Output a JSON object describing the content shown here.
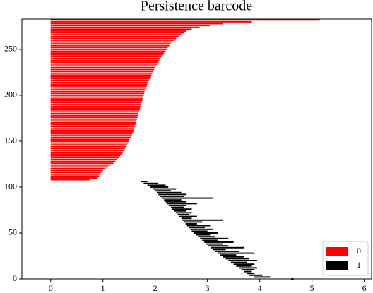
{
  "chart_data": {
    "type": "barcode",
    "title": "Persistence barcode",
    "xlim": [
      -0.55,
      6.14
    ],
    "xticks": [
      0,
      1,
      2,
      3,
      4,
      5,
      6
    ],
    "ylim": [
      0,
      283
    ],
    "yticks": [
      0,
      50,
      100,
      150,
      200,
      250
    ],
    "legend": "lower right",
    "series": [
      {
        "name": "0",
        "color": "#ff0000",
        "y": [
          282,
          280,
          278,
          276,
          274,
          272,
          270,
          268,
          266,
          264,
          262,
          260,
          258,
          256,
          254,
          252,
          250,
          248,
          246,
          244,
          242,
          240,
          238,
          236,
          234,
          232,
          230,
          228,
          226,
          224,
          222,
          220,
          218,
          216,
          214,
          212,
          210,
          208,
          206,
          204,
          202,
          200,
          198,
          196,
          194,
          192,
          190,
          188,
          186,
          184,
          182,
          180,
          178,
          176,
          174,
          172,
          170,
          168,
          166,
          164,
          162,
          160,
          158,
          156,
          154,
          152,
          150,
          148,
          146,
          144,
          142,
          140,
          138,
          136,
          134,
          132,
          130,
          128,
          126,
          124,
          122,
          120,
          118,
          116,
          114,
          112,
          110,
          108
        ],
        "births": [
          0,
          0,
          0,
          0,
          0,
          0,
          0,
          0,
          0,
          0,
          0,
          0,
          0,
          0,
          0,
          0,
          0,
          0,
          0,
          0,
          0,
          0,
          0,
          0,
          0,
          0,
          0,
          0,
          0,
          0,
          0,
          0,
          0,
          0,
          0,
          0,
          0,
          0,
          0,
          0,
          0,
          0,
          0,
          0,
          0,
          0,
          0,
          0,
          0,
          0,
          0,
          0,
          0,
          0,
          0,
          0,
          0,
          0,
          0,
          0,
          0,
          0,
          0,
          0,
          0,
          0,
          0,
          0,
          0,
          0,
          0,
          0,
          0,
          0,
          0,
          0,
          0,
          0,
          0,
          0,
          0,
          0,
          0,
          0,
          0,
          0,
          0,
          0
        ],
        "deaths": [
          5.15,
          3.85,
          3.3,
          3.05,
          2.85,
          2.7,
          2.6,
          2.55,
          2.5,
          2.45,
          2.4,
          2.36,
          2.33,
          2.3,
          2.27,
          2.24,
          2.22,
          2.2,
          2.17,
          2.15,
          2.12,
          2.1,
          2.08,
          2.06,
          2.04,
          2.02,
          2.0,
          1.98,
          1.96,
          1.95,
          1.93,
          1.92,
          1.9,
          1.88,
          1.87,
          1.85,
          1.84,
          1.83,
          1.81,
          1.8,
          1.79,
          1.78,
          1.77,
          1.76,
          1.75,
          1.74,
          1.73,
          1.72,
          1.71,
          1.7,
          1.69,
          1.68,
          1.67,
          1.66,
          1.65,
          1.64,
          1.63,
          1.62,
          1.61,
          1.6,
          1.59,
          1.58,
          1.56,
          1.55,
          1.53,
          1.51,
          1.5,
          1.48,
          1.46,
          1.44,
          1.42,
          1.4,
          1.38,
          1.36,
          1.33,
          1.3,
          1.27,
          1.24,
          1.2,
          1.15,
          1.1,
          1.05,
          1.0,
          0.97,
          0.95,
          0.93,
          0.9,
          0.75
        ]
      },
      {
        "name": "1",
        "color": "#000000",
        "y": [
          106,
          104,
          102,
          100,
          98,
          96,
          94,
          92,
          90,
          88,
          86,
          84,
          82,
          80,
          78,
          76,
          74,
          72,
          70,
          68,
          66,
          64,
          62,
          60,
          58,
          56,
          54,
          52,
          50,
          48,
          46,
          44,
          42,
          40,
          38,
          36,
          34,
          32,
          30,
          28,
          26,
          24,
          22,
          20,
          18,
          16,
          14,
          12,
          10,
          8,
          6,
          4,
          2,
          0
        ],
        "births": [
          1.72,
          1.78,
          1.85,
          1.9,
          1.95,
          2.0,
          2.03,
          2.06,
          2.1,
          2.13,
          2.17,
          2.2,
          2.23,
          2.26,
          2.3,
          2.33,
          2.36,
          2.4,
          2.43,
          2.46,
          2.5,
          2.52,
          2.55,
          2.58,
          2.61,
          2.64,
          2.67,
          2.7,
          2.74,
          2.78,
          2.82,
          2.86,
          2.9,
          2.94,
          2.98,
          3.02,
          3.06,
          3.1,
          3.15,
          3.2,
          3.25,
          3.3,
          3.35,
          3.4,
          3.45,
          3.5,
          3.55,
          3.6,
          3.65,
          3.7,
          3.75,
          3.8,
          3.9,
          4.6
        ],
        "deaths": [
          1.85,
          2.05,
          2.2,
          2.25,
          2.4,
          2.3,
          2.5,
          2.6,
          2.55,
          3.1,
          2.5,
          2.6,
          2.8,
          2.6,
          2.55,
          2.7,
          2.6,
          2.7,
          2.65,
          2.8,
          2.7,
          3.3,
          2.9,
          2.8,
          3.05,
          2.95,
          3.1,
          3.0,
          3.2,
          3.05,
          3.15,
          3.4,
          3.2,
          3.5,
          3.3,
          3.4,
          3.7,
          3.35,
          3.6,
          3.9,
          3.55,
          3.7,
          3.8,
          3.95,
          3.75,
          3.9,
          3.85,
          3.95,
          3.9,
          3.85,
          3.9,
          4.05,
          4.2,
          4.65
        ]
      }
    ]
  }
}
